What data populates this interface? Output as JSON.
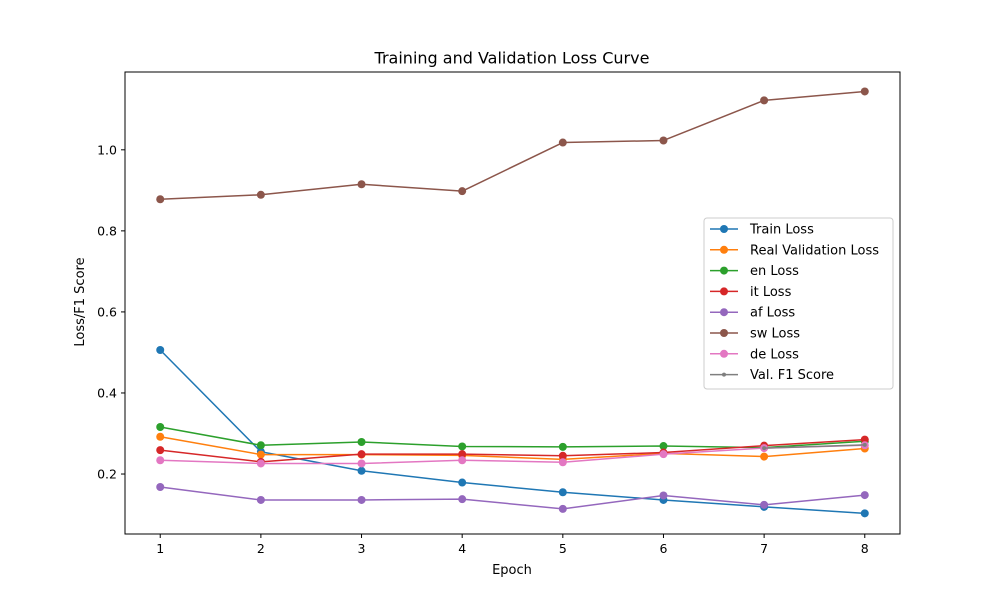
{
  "chart_data": {
    "type": "line",
    "title": "Training and Validation Loss Curve",
    "xlabel": "Epoch",
    "ylabel": "Loss/F1 Score",
    "x": [
      1,
      2,
      3,
      4,
      5,
      6,
      7,
      8
    ],
    "xlim": [
      0.65,
      8.35
    ],
    "ylim": [
      0.052,
      1.192
    ],
    "xticks": [
      1,
      2,
      3,
      4,
      5,
      6,
      7,
      8
    ],
    "yticks": [
      0.2,
      0.4,
      0.6,
      0.8,
      1.0
    ],
    "ytick_labels": [
      "0.2",
      "0.4",
      "0.6",
      "0.8",
      "1.0"
    ],
    "grid": false,
    "legend_position": "center-right",
    "series": [
      {
        "name": "Train Loss",
        "color": "#1f77b4",
        "marker": "circle",
        "values": [
          0.506,
          0.255,
          0.208,
          0.179,
          0.155,
          0.136,
          0.119,
          0.103
        ]
      },
      {
        "name": "Real Validation Loss",
        "color": "#ff7f0e",
        "marker": "circle",
        "values": [
          0.292,
          0.248,
          0.248,
          0.246,
          0.236,
          0.251,
          0.243,
          0.263
        ]
      },
      {
        "name": "en Loss",
        "color": "#2ca02c",
        "marker": "circle",
        "values": [
          0.316,
          0.271,
          0.279,
          0.268,
          0.267,
          0.269,
          0.265,
          0.281
        ]
      },
      {
        "name": "it Loss",
        "color": "#d62728",
        "marker": "circle",
        "values": [
          0.259,
          0.23,
          0.249,
          0.249,
          0.245,
          0.253,
          0.27,
          0.285
        ]
      },
      {
        "name": "af Loss",
        "color": "#9467bd",
        "marker": "circle",
        "values": [
          0.168,
          0.136,
          0.136,
          0.138,
          0.114,
          0.147,
          0.124,
          0.148
        ]
      },
      {
        "name": "sw Loss",
        "color": "#8c564b",
        "marker": "circle",
        "values": [
          0.878,
          0.889,
          0.915,
          0.898,
          1.018,
          1.023,
          1.122,
          1.144
        ]
      },
      {
        "name": "de Loss",
        "color": "#e377c2",
        "marker": "circle",
        "values": [
          0.234,
          0.226,
          0.226,
          0.234,
          0.229,
          0.249,
          0.264,
          0.271
        ]
      },
      {
        "name": "Val. F1 Score",
        "color": "#7f7f7f",
        "marker": "small-dot",
        "values": [
          null,
          null,
          null,
          null,
          null,
          null,
          0.264,
          0.272
        ]
      }
    ]
  }
}
